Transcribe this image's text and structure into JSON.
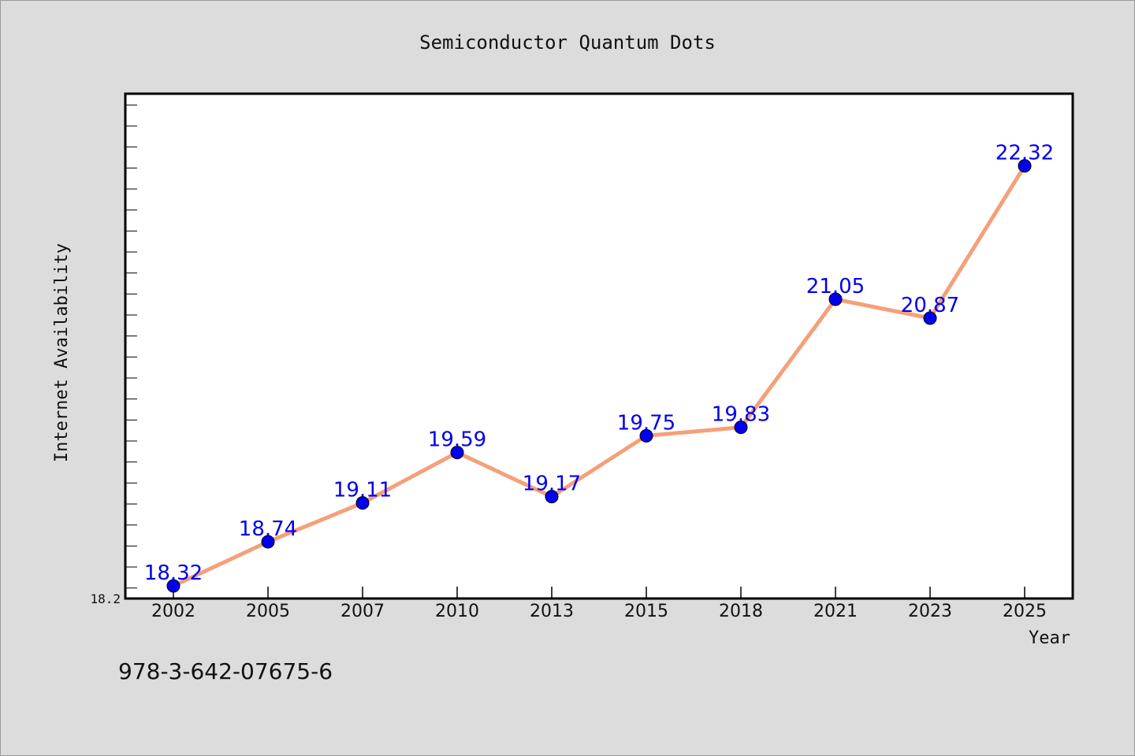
{
  "chart_data": {
    "type": "line",
    "title": "Semiconductor Quantum Dots",
    "xlabel": "Year",
    "ylabel": "Internet Availability",
    "categories": [
      "2002",
      "2005",
      "2007",
      "2010",
      "2013",
      "2015",
      "2018",
      "2021",
      "2023",
      "2025"
    ],
    "series": [
      {
        "values": [
          18.32,
          18.74,
          19.11,
          19.59,
          19.17,
          19.75,
          19.83,
          21.05,
          20.87,
          22.32
        ]
      }
    ],
    "data_labels": [
      "18.32",
      "18.74",
      "19.11",
      "19.59",
      "19.17",
      "19.75",
      "19.83",
      "21.05",
      "20.87",
      "22.32"
    ],
    "ylim": [
      18.2,
      23.0
    ],
    "y_tick_labels": [
      "18.2"
    ],
    "grid": false,
    "legend": "none",
    "colors": {
      "line": "#f4a07a",
      "marker": "#0000ee",
      "data_label": "#0000ee",
      "background": "#dcdcdc",
      "plot_background": "#ffffff"
    }
  },
  "footer": {
    "code": "978-3-642-07675-6"
  }
}
